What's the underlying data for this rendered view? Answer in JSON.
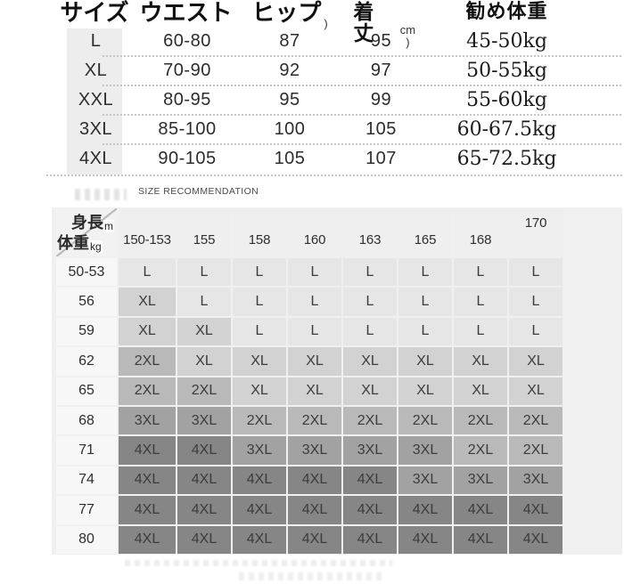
{
  "spec_table": {
    "headers": [
      {
        "label": "サイズ",
        "suffix": ""
      },
      {
        "label": "ウエスト",
        "suffix": ""
      },
      {
        "label": "ヒップ",
        "suffix": ")"
      },
      {
        "label": "着丈",
        "suffix": "cm )"
      },
      {
        "label": "勧め体重",
        "suffix": ""
      }
    ],
    "rows": [
      {
        "size": "L",
        "waist": "60-80",
        "hip": "87",
        "length": "95",
        "weight": "45-50kg"
      },
      {
        "size": "XL",
        "waist": "70-90",
        "hip": "92",
        "length": "97",
        "weight": "50-55kg"
      },
      {
        "size": "XXL",
        "waist": "80-95",
        "hip": "95",
        "length": "99",
        "weight": "55-60kg"
      },
      {
        "size": "3XL",
        "waist": "85-100",
        "hip": "100",
        "length": "105",
        "weight": "60-67.5kg"
      },
      {
        "size": "4XL",
        "waist": "90-105",
        "hip": "105",
        "length": "107",
        "weight": "65-72.5kg"
      }
    ]
  },
  "reco": {
    "title": "SIZE RECOMMENDATION",
    "corner": {
      "height_label": "身長",
      "height_unit": "m",
      "weight_label": "体重",
      "weight_unit": "kg"
    },
    "columns": [
      "150-153",
      "155",
      "158",
      "160",
      "163",
      "165",
      "168",
      "170"
    ],
    "rows": [
      {
        "weight": "50-53",
        "sizes": [
          "L",
          "L",
          "L",
          "L",
          "L",
          "L",
          "L",
          "L"
        ]
      },
      {
        "weight": "56",
        "sizes": [
          "XL",
          "L",
          "L",
          "L",
          "L",
          "L",
          "L",
          "L"
        ]
      },
      {
        "weight": "59",
        "sizes": [
          "XL",
          "XL",
          "L",
          "L",
          "L",
          "L",
          "L",
          "L"
        ]
      },
      {
        "weight": "62",
        "sizes": [
          "2XL",
          "XL",
          "XL",
          "XL",
          "XL",
          "XL",
          "XL",
          "XL"
        ]
      },
      {
        "weight": "65",
        "sizes": [
          "2XL",
          "2XL",
          "XL",
          "XL",
          "XL",
          "XL",
          "XL",
          "XL"
        ]
      },
      {
        "weight": "68",
        "sizes": [
          "3XL",
          "3XL",
          "2XL",
          "2XL",
          "2XL",
          "2XL",
          "2XL",
          "2XL"
        ]
      },
      {
        "weight": "71",
        "sizes": [
          "4XL",
          "4XL",
          "3XL",
          "3XL",
          "3XL",
          "3XL",
          "2XL",
          "2XL"
        ]
      },
      {
        "weight": "74",
        "sizes": [
          "4XL",
          "4XL",
          "4XL",
          "4XL",
          "4XL",
          "3XL",
          "3XL",
          "3XL"
        ]
      },
      {
        "weight": "77",
        "sizes": [
          "4XL",
          "4XL",
          "4XL",
          "4XL",
          "4XL",
          "4XL",
          "4XL",
          "4XL"
        ]
      },
      {
        "weight": "80",
        "sizes": [
          "4XL",
          "4XL",
          "4XL",
          "4XL",
          "4XL",
          "4XL",
          "4XL",
          "4XL"
        ]
      }
    ],
    "cell_colors": {
      "L": "#e6e6e6",
      "XL": "#d2d2d2",
      "2XL": "#b9b9b9",
      "3XL": "#a2a2a2",
      "4XL": "#868686"
    }
  }
}
